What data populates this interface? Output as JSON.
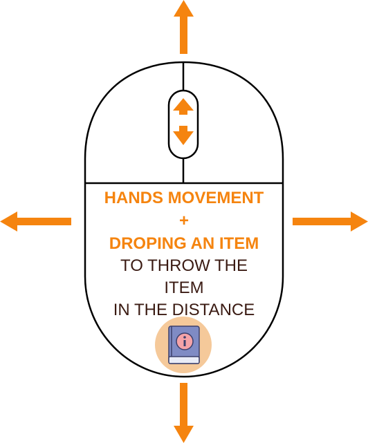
{
  "colors": {
    "accent": "#F5840F",
    "outline": "#000000",
    "text_dark": "#3A1A12",
    "icon_circle": "#F5C99A",
    "book_cover": "#7F8BC4",
    "book_pages": "#E9ECF7",
    "info_circle": "#F4A3A8"
  },
  "icons": [
    "arrow-up-icon",
    "arrow-down-icon",
    "arrow-left-icon",
    "arrow-right-icon",
    "scroll-arrows-icon",
    "info-book-icon"
  ],
  "text": {
    "line1": "HANDS MOVEMENT",
    "line2": "+",
    "line3": "DROPING AN ITEM",
    "line4": "TO THROW THE",
    "line5": "ITEM",
    "line6": "IN THE DISTANCE"
  }
}
